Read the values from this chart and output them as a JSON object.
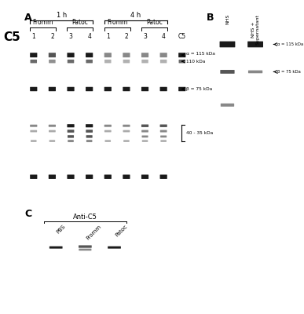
{
  "title_label": "C5",
  "panel_A_label": "A",
  "panel_B_label": "B",
  "panel_C_label": "C",
  "time_labels": [
    "1 h",
    "4 h"
  ],
  "group_labels_A": [
    "Fromm",
    "Patoc",
    "Fromm",
    "Patoc"
  ],
  "lane_labels_A": [
    "1",
    "2",
    "3",
    "4",
    "1",
    "2",
    "3",
    "4",
    "C5"
  ],
  "annotation_A": [
    "α = 115 kDa",
    "110 kDa",
    "β = 75 kDa",
    "40 - 35 kDa"
  ],
  "col_labels_B": [
    "NHS",
    "NHS +\nSupernatant"
  ],
  "annotation_B": [
    "α = 115 kDa",
    "β = 75 kDa"
  ],
  "panel_C_title": "Anti-C5",
  "lane_labels_C": [
    "PBS",
    "Fromm",
    "Patoc"
  ],
  "bg_color": "#ffffff",
  "gel_bg_A": "#d8d8d8",
  "gel_bg_B": "#c8c8c8",
  "gel_bg_C": "#e0ddd5",
  "band_color_dark": "#1a1a1a",
  "band_color_mid": "#555555",
  "band_color_light": "#888888",
  "band_color_very_light": "#aaaaaa"
}
